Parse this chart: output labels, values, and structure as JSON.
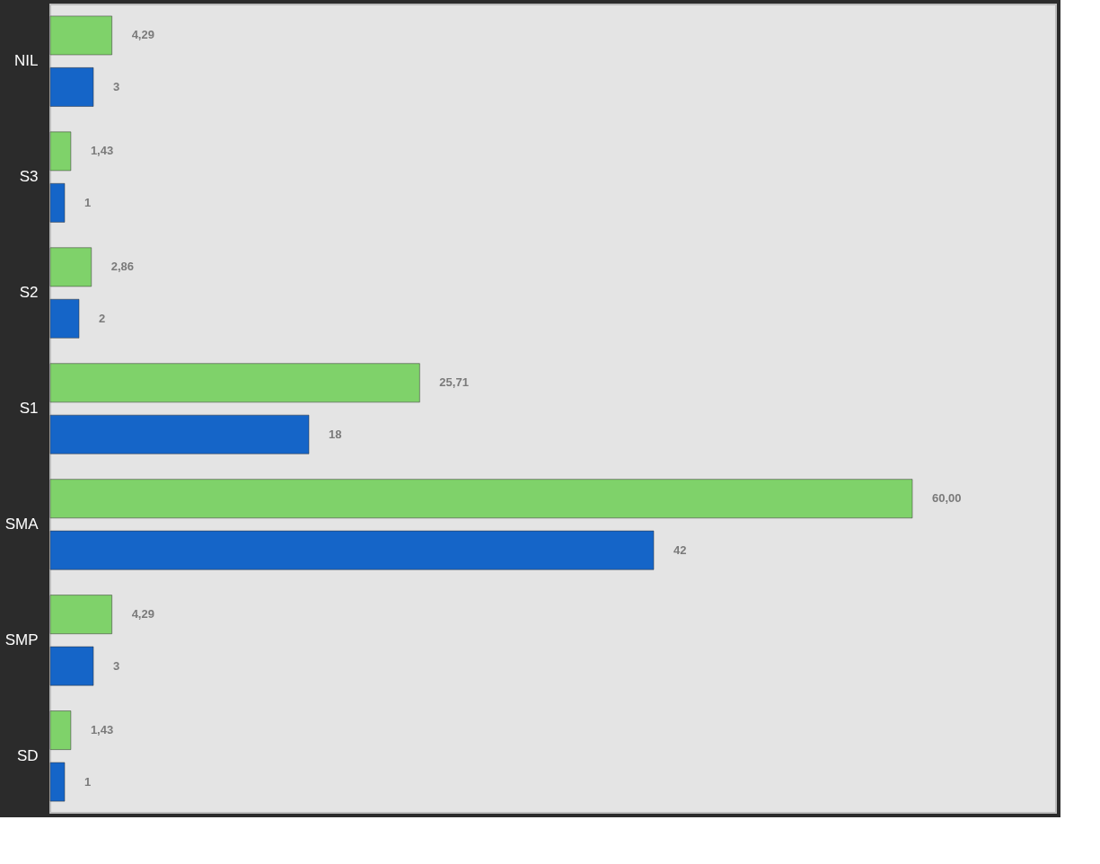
{
  "chart_data": {
    "type": "bar",
    "orientation": "horizontal",
    "categories": [
      "NIL",
      "S3",
      "S2",
      "S1",
      "SMA",
      "SMP",
      "SD"
    ],
    "series": [
      {
        "color": "#7fd26a",
        "values": [
          4.29,
          1.43,
          2.86,
          25.71,
          60.0,
          4.29,
          1.43
        ],
        "value_labels": [
          "4,29",
          "1,43",
          "2,86",
          "25,71",
          "60,00",
          "4,29",
          "1,43"
        ]
      },
      {
        "color": "#1565c8",
        "values": [
          3,
          1,
          2,
          18,
          42,
          3,
          1
        ],
        "value_labels": [
          "3",
          "1",
          "2",
          "18",
          "42",
          "3",
          "1"
        ]
      }
    ],
    "xlim": [
      0,
      70
    ],
    "grid": false,
    "legend": false,
    "tick_labels": "y"
  }
}
